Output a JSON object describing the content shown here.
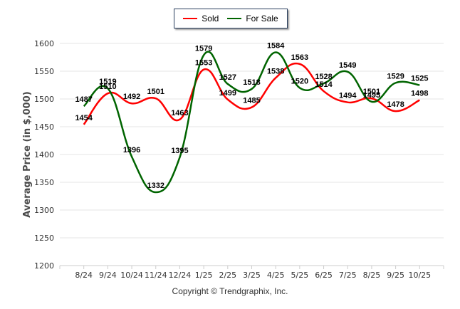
{
  "chart_data": {
    "type": "line",
    "title": "",
    "xlabel": "",
    "ylabel": "Average Price (in $,000)",
    "ylim": [
      1200,
      1600
    ],
    "yticks": [
      1200,
      1250,
      1300,
      1350,
      1400,
      1450,
      1500,
      1550,
      1600
    ],
    "grid": true,
    "legend_position": "top-center",
    "categories": [
      "8/24",
      "9/24",
      "10/24",
      "11/24",
      "12/24",
      "1/25",
      "2/25",
      "3/25",
      "4/25",
      "5/25",
      "6/25",
      "7/25",
      "8/25",
      "9/25",
      "10/25"
    ],
    "series": [
      {
        "name": "Sold",
        "color": "#ff0000",
        "values": [
          1454,
          1510,
          1492,
          1501,
          1463,
          1553,
          1499,
          1485,
          1538,
          1563,
          1514,
          1494,
          1501,
          1478,
          1498
        ]
      },
      {
        "name": "For Sale",
        "color": "#006400",
        "values": [
          1487,
          1519,
          1396,
          1332,
          1395,
          1579,
          1527,
          1518,
          1584,
          1520,
          1528,
          1549,
          1495,
          1529,
          1525
        ]
      }
    ]
  },
  "legend": {
    "items": [
      {
        "label": "Sold",
        "color": "#ff0000"
      },
      {
        "label": "For Sale",
        "color": "#006400"
      }
    ]
  },
  "footer": {
    "copyright": "Copyright © Trendgraphix, Inc."
  }
}
